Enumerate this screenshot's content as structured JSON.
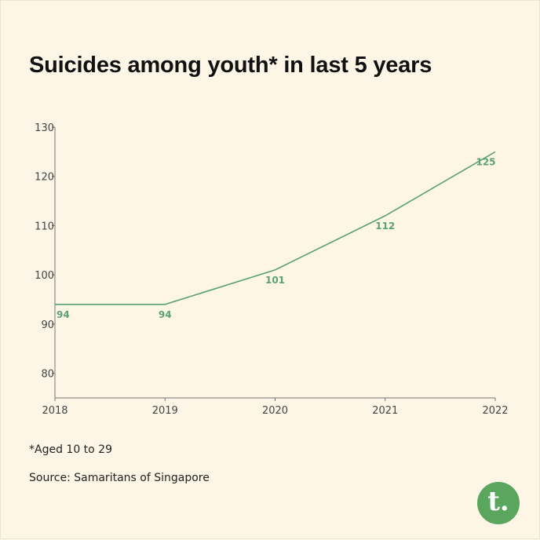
{
  "title": "Suicides among youth* in last 5 years",
  "note": "*Aged 10 to 29",
  "source": "Source: Samaritans of Singapore",
  "logo": {
    "letter": "t.",
    "color": "#5aa65f"
  },
  "colors": {
    "background": "#fdf6e6",
    "line": "#5aa173",
    "axis": "#777777",
    "text": "#111111"
  },
  "chart_data": {
    "type": "line",
    "title": "Suicides among youth* in last 5 years",
    "x": [
      2018,
      2019,
      2020,
      2021,
      2022
    ],
    "series": [
      {
        "values": [
          94,
          94,
          101,
          112,
          125
        ],
        "labels": [
          "94",
          "94",
          "101",
          "112",
          "125"
        ]
      }
    ],
    "xticks": [
      "2018",
      "2019",
      "2020",
      "2021",
      "2022"
    ],
    "yticks": [
      "80",
      "90",
      "100",
      "110",
      "120",
      "130"
    ],
    "ylim": [
      75,
      130
    ],
    "xlabel": "",
    "ylabel": "",
    "grid": false,
    "legend": "none"
  }
}
